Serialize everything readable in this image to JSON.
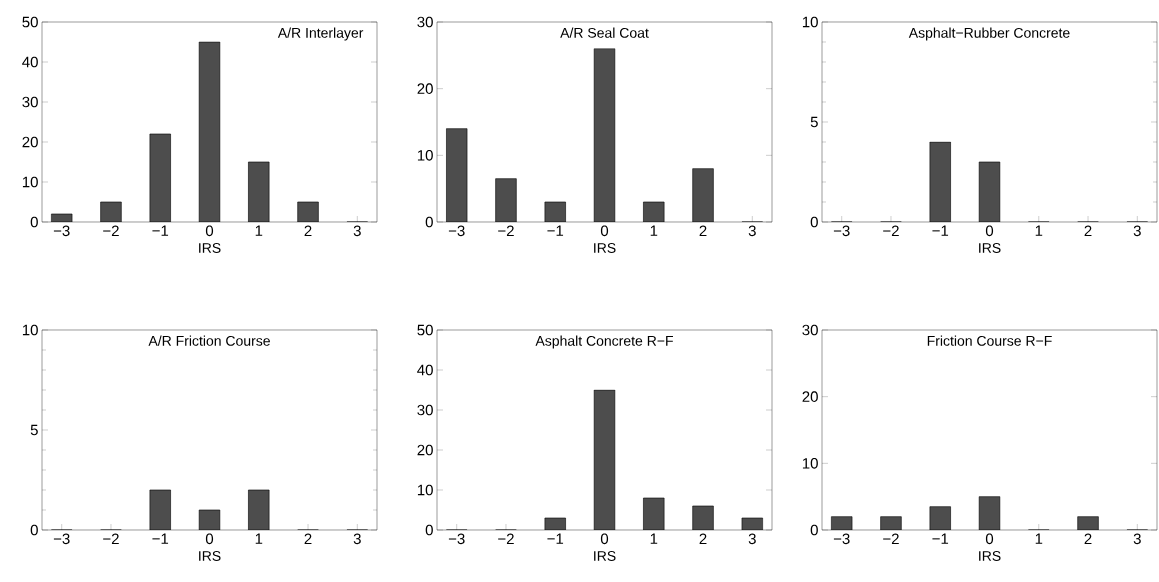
{
  "chart_data": [
    {
      "type": "bar",
      "title": "A/R Interlayer",
      "xlabel": "IRS",
      "x": [
        -3,
        -2,
        -1,
        0,
        1,
        2,
        3
      ],
      "values": [
        2,
        5,
        22,
        45,
        15,
        5,
        0
      ],
      "color": "#4d4d4d",
      "xlim": [
        -3.4,
        3.4
      ],
      "xticks": [
        {
          "value": -3,
          "label": "−3"
        },
        {
          "value": -2,
          "label": "−2"
        },
        {
          "value": -1,
          "label": "−1"
        },
        0,
        1,
        2,
        3
      ],
      "ylim": [
        0,
        50
      ],
      "yticks": [
        0,
        10,
        20,
        30,
        40,
        50
      ]
    },
    {
      "type": "bar",
      "title": "A/R Seal Coat",
      "xlabel": "IRS",
      "x": [
        -3,
        -2,
        -1,
        0,
        1,
        2,
        3
      ],
      "values": [
        14,
        6.5,
        3,
        26,
        3,
        8,
        0
      ],
      "color": "#4d4d4d",
      "xlim": [
        -3.4,
        3.4
      ],
      "xticks": [
        {
          "value": -3,
          "label": "−3"
        },
        {
          "value": -2,
          "label": "−2"
        },
        {
          "value": -1,
          "label": "−1"
        },
        0,
        1,
        2,
        3
      ],
      "ylim": [
        0,
        30
      ],
      "yticks": [
        0,
        10,
        20,
        30
      ]
    },
    {
      "type": "bar",
      "title": "Asphalt−Rubber Concrete",
      "xlabel": "IRS",
      "x": [
        -3,
        -2,
        -1,
        0,
        1,
        2,
        3
      ],
      "values": [
        0,
        0,
        4,
        3,
        0,
        0,
        0
      ],
      "color": "#4d4d4d",
      "xlim": [
        -3.4,
        3.4
      ],
      "xticks": [
        {
          "value": -3,
          "label": "−3"
        },
        {
          "value": -2,
          "label": "−2"
        },
        {
          "value": -1,
          "label": "−1"
        },
        0,
        1,
        2,
        3
      ],
      "ylim": [
        0,
        10
      ],
      "yticks": [
        0,
        5,
        10
      ]
    },
    {
      "type": "bar",
      "title": "A/R Friction Course",
      "xlabel": "IRS",
      "x": [
        -3,
        -2,
        -1,
        0,
        1,
        2,
        3
      ],
      "values": [
        0,
        0,
        2,
        1,
        2,
        0,
        0
      ],
      "color": "#4d4d4d",
      "xlim": [
        -3.4,
        3.4
      ],
      "xticks": [
        {
          "value": -3,
          "label": "−3"
        },
        {
          "value": -2,
          "label": "−2"
        },
        {
          "value": -1,
          "label": "−1"
        },
        0,
        1,
        2,
        3
      ],
      "ylim": [
        0,
        10
      ],
      "yticks": [
        0,
        5,
        10
      ]
    },
    {
      "type": "bar",
      "title": "Asphalt Concrete R−F",
      "xlabel": "IRS",
      "x": [
        -3,
        -2,
        -1,
        0,
        1,
        2,
        3
      ],
      "values": [
        0,
        0,
        3,
        35,
        8,
        6,
        3
      ],
      "color": "#4d4d4d",
      "xlim": [
        -3.4,
        3.4
      ],
      "xticks": [
        {
          "value": -3,
          "label": "−3"
        },
        {
          "value": -2,
          "label": "−2"
        },
        {
          "value": -1,
          "label": "−1"
        },
        0,
        1,
        2,
        3
      ],
      "ylim": [
        0,
        50
      ],
      "yticks": [
        0,
        10,
        20,
        30,
        40,
        50
      ]
    },
    {
      "type": "bar",
      "title": "Friction Course R−F",
      "xlabel": "IRS",
      "x": [
        -3,
        -2,
        -1,
        0,
        1,
        2,
        3
      ],
      "values": [
        2,
        2,
        3.5,
        5,
        0,
        2,
        0
      ],
      "color": "#4d4d4d",
      "xlim": [
        -3.4,
        3.4
      ],
      "xticks": [
        {
          "value": -3,
          "label": "−3"
        },
        {
          "value": -2,
          "label": "−2"
        },
        {
          "value": -1,
          "label": "−1"
        },
        0,
        1,
        2,
        3
      ],
      "ylim": [
        0,
        30
      ],
      "yticks": [
        0,
        10,
        20,
        30
      ]
    }
  ]
}
